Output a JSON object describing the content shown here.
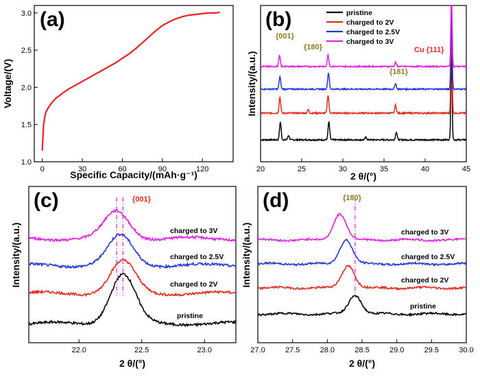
{
  "chart_data": [
    {
      "panel": "(a)",
      "type": "line",
      "xlabel": "Specific Capacity/(mAh·g⁻¹)",
      "ylabel": "Voltage/(V)",
      "xlim": [
        -6,
        143
      ],
      "ylim": [
        1.0,
        3.1
      ],
      "xticks": [
        "0",
        "30",
        "60",
        "90",
        "120"
      ],
      "yticks": [
        "1.0",
        "1.5",
        "2.0",
        "2.5",
        "3.0"
      ],
      "series": [
        {
          "color": "#ee2020",
          "x": [
            0,
            0.5,
            1,
            2,
            3,
            5,
            7,
            10,
            15,
            20,
            25,
            30,
            35,
            40,
            45,
            50,
            55,
            60,
            65,
            70,
            75,
            80,
            85,
            90,
            95,
            100,
            105,
            110,
            115,
            120,
            125,
            130,
            133
          ],
          "y": [
            1.15,
            1.35,
            1.5,
            1.62,
            1.68,
            1.74,
            1.79,
            1.85,
            1.92,
            1.98,
            2.03,
            2.08,
            2.13,
            2.18,
            2.23,
            2.28,
            2.33,
            2.39,
            2.45,
            2.52,
            2.6,
            2.68,
            2.76,
            2.83,
            2.88,
            2.92,
            2.95,
            2.97,
            2.98,
            2.99,
            3.0,
            3.0,
            3.01
          ]
        }
      ]
    },
    {
      "panel": "(b)",
      "type": "line",
      "xlabel": "2 θ/(°)",
      "ylabel": "Intensity/(a.u.)",
      "xlim": [
        20,
        45
      ],
      "xticks": [
        "20",
        "25",
        "30",
        "35",
        "40",
        "45"
      ],
      "legend": {
        "position": "top-left-inside"
      },
      "series": [
        {
          "name": "pristine",
          "color": "#000000",
          "peaks": [
            [
              22.4,
              1.0
            ],
            [
              23.4,
              0.25
            ],
            [
              28.3,
              1.0
            ],
            [
              32.8,
              0.15
            ],
            [
              36.5,
              0.45
            ],
            [
              43.2,
              4.8
            ]
          ]
        },
        {
          "name": "charged to 2V",
          "color": "#e8291c",
          "peaks": [
            [
              22.35,
              0.9
            ],
            [
              25.8,
              0.2
            ],
            [
              28.2,
              1.0
            ],
            [
              36.4,
              0.45
            ],
            [
              43.2,
              4.8
            ]
          ]
        },
        {
          "name": "charged to 2.5V",
          "color": "#1c35e0",
          "peaks": [
            [
              22.35,
              0.75
            ],
            [
              28.25,
              1.0
            ],
            [
              36.4,
              0.35
            ],
            [
              43.2,
              4.8
            ]
          ]
        },
        {
          "name": "charged to 3V",
          "color": "#e61ee6",
          "peaks": [
            [
              22.3,
              0.65
            ],
            [
              28.2,
              0.7
            ],
            [
              36.4,
              0.25
            ],
            [
              43.2,
              4.8
            ]
          ]
        }
      ],
      "annotations": [
        {
          "text": "{001}",
          "color": "#8a7a1a"
        },
        {
          "text": "{180}",
          "color": "#8a7a1a"
        },
        {
          "text": "{181}",
          "color": "#8a7a1a"
        },
        {
          "text": "Cu {111}",
          "color": "#e8291c"
        }
      ]
    },
    {
      "panel": "(c)",
      "type": "line",
      "xlabel": "2 θ/(°)",
      "ylabel": "Intensity/(a.u.)",
      "xlim": [
        21.6,
        23.25
      ],
      "xticks": [
        "22.0",
        "22.5",
        "23.0"
      ],
      "reference_lines": [
        22.3,
        22.35
      ],
      "series": [
        {
          "name": "pristine",
          "color": "#000000",
          "peak_center": 22.35,
          "peak_height": 1.0
        },
        {
          "name": "charged to 2V",
          "color": "#e8291c",
          "peak_center": 22.35,
          "peak_height": 0.65
        },
        {
          "name": "charged to 2.5V",
          "color": "#1c35e0",
          "peak_center": 22.33,
          "peak_height": 0.6
        },
        {
          "name": "charged to 3V",
          "color": "#e61ee6",
          "peak_center": 22.3,
          "peak_height": 0.55
        }
      ],
      "annotations": [
        {
          "text": "{001}",
          "color": "#e8291c"
        }
      ]
    },
    {
      "panel": "(d)",
      "type": "line",
      "xlabel": "2 θ/(°)",
      "ylabel": "Intensity/(a.u.)",
      "xlim": [
        27.0,
        30.0
      ],
      "xticks": [
        "27.0",
        "27.5",
        "28.0",
        "28.5",
        "29.0",
        "29.5",
        "30.0"
      ],
      "reference_lines": [
        28.4
      ],
      "series": [
        {
          "name": "pristine",
          "color": "#000000",
          "peak_center": 28.4,
          "peak_height": 0.5
        },
        {
          "name": "charged to 2V",
          "color": "#e8291c",
          "peak_center": 28.3,
          "peak_height": 0.6
        },
        {
          "name": "charged to 2.5V",
          "color": "#1c35e0",
          "peak_center": 28.27,
          "peak_height": 0.65
        },
        {
          "name": "charged to 3V",
          "color": "#e61ee6",
          "peak_center": 28.18,
          "peak_height": 0.7
        }
      ],
      "annotations": [
        {
          "text": "{180}",
          "color": "#8a7a1a"
        }
      ]
    }
  ]
}
